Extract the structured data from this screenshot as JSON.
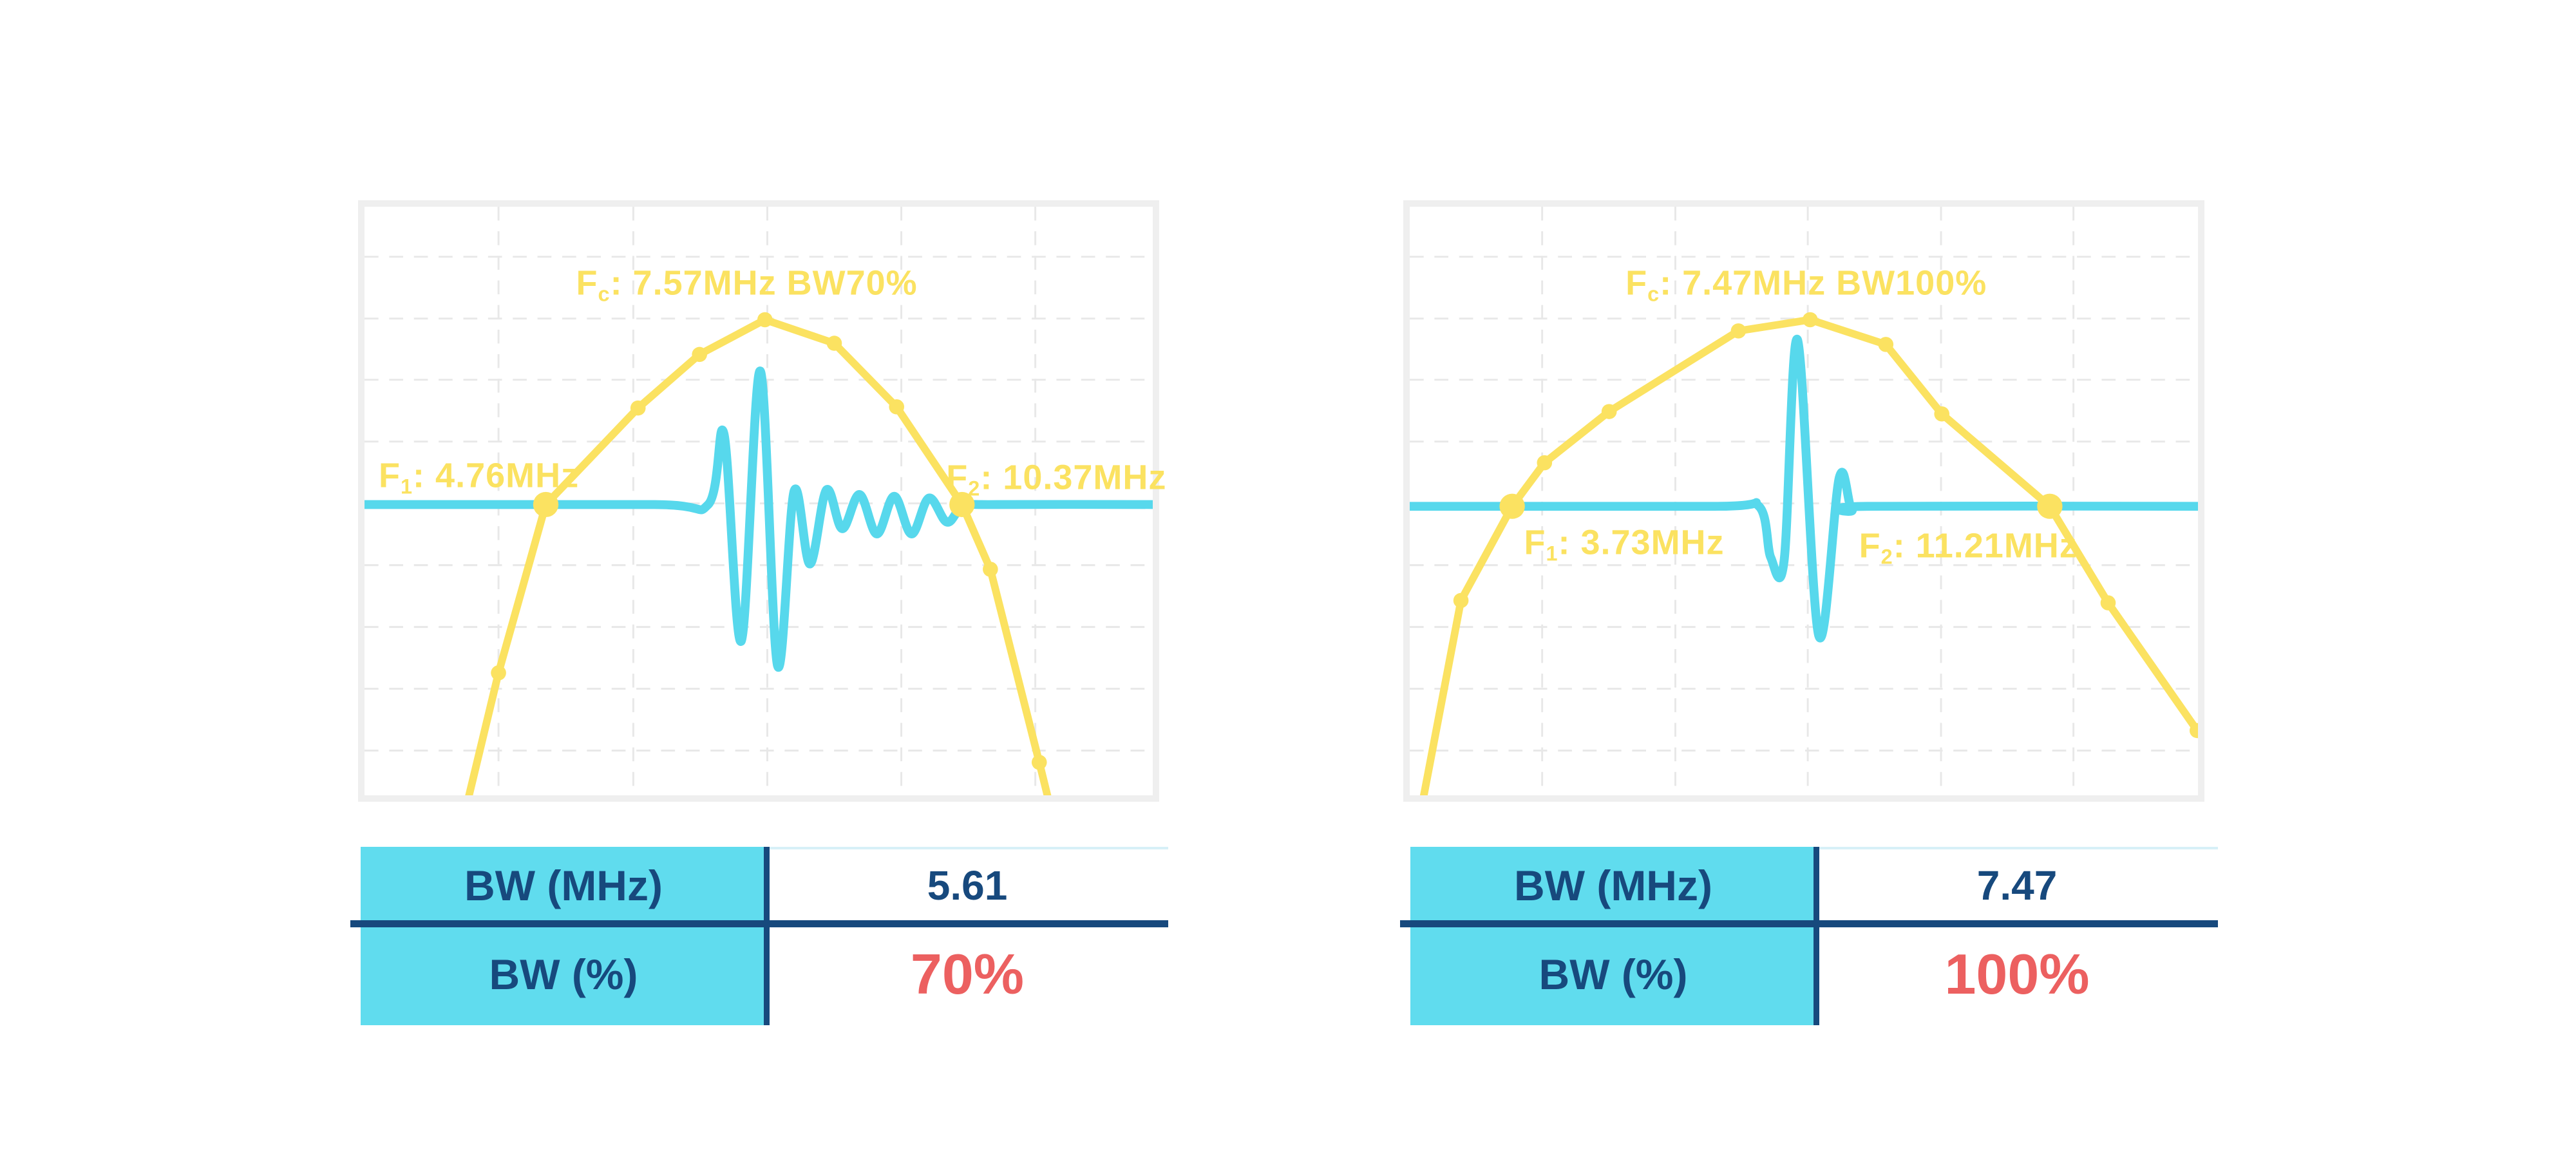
{
  "colors": {
    "background": "#FFFFFF",
    "yellow": "#FBE261",
    "cyan": "#57D8EC",
    "table_header_bg": "#60DCEE",
    "navy": "#17497D",
    "red": "#EC6060",
    "frame": "#EFEFEF",
    "grid": "#E8E8E8",
    "value_top_line": "#D7F0F7"
  },
  "chart_data": [
    {
      "id": "bw70",
      "type": "line",
      "title": "Fc: 7.57MHz BW70%",
      "labels": {
        "title": {
          "prefix": "F",
          "sub": "c",
          "rest": ": 7.57MHz BW70%"
        },
        "f1": {
          "prefix": "F",
          "sub": "1",
          "rest": ": 4.76MHz"
        },
        "f2": {
          "prefix": "F",
          "sub": "2",
          "rest": ": 10.37MHz"
        }
      },
      "key_values": {
        "Fc_MHz": 7.57,
        "F1_MHz": 4.76,
        "F2_MHz": 10.37,
        "BW_MHz": 5.61,
        "BW_percent": 70
      },
      "axes": {
        "x_unit": "MHz",
        "ticks_visible": false,
        "grid_style": "dashed"
      },
      "grid": {
        "vx": [
          0.17,
          0.341,
          0.511,
          0.681,
          0.851
        ],
        "hy": [
          0.085,
          0.19,
          0.294,
          0.399,
          0.504,
          0.609,
          0.714,
          0.819,
          0.924
        ]
      },
      "series": [
        {
          "name": "spectrum",
          "style": "line_with_markers",
          "color_key": "yellow",
          "points": [
            [
              0.124,
              1.048
            ],
            [
              0.17,
              0.792
            ],
            [
              0.23,
              0.506
            ],
            [
              0.347,
              0.342
            ],
            [
              0.425,
              0.251
            ],
            [
              0.508,
              0.192
            ],
            [
              0.596,
              0.232
            ],
            [
              0.675,
              0.34
            ],
            [
              0.758,
              0.506
            ],
            [
              0.794,
              0.616
            ],
            [
              0.856,
              0.944
            ],
            [
              0.883,
              1.091
            ]
          ],
          "markers": [
            [
              0.17,
              0.792
            ],
            [
              0.347,
              0.342
            ],
            [
              0.425,
              0.251
            ],
            [
              0.508,
              0.192
            ],
            [
              0.596,
              0.232
            ],
            [
              0.675,
              0.34
            ],
            [
              0.794,
              0.616
            ],
            [
              0.856,
              0.944
            ]
          ],
          "markers_big": [
            [
              0.23,
              0.506
            ],
            [
              0.758,
              0.506
            ]
          ]
        },
        {
          "name": "pulse_waveform",
          "style": "smooth_line",
          "color_key": "cyan",
          "baseline": 0.506,
          "points": [
            [
              0.0,
              0.506
            ],
            [
              0.365,
              0.506
            ],
            [
              0.436,
              0.506
            ],
            [
              0.456,
              0.386
            ],
            [
              0.478,
              0.738
            ],
            [
              0.502,
              0.279
            ],
            [
              0.524,
              0.78
            ],
            [
              0.545,
              0.483
            ],
            [
              0.565,
              0.607
            ],
            [
              0.586,
              0.481
            ],
            [
              0.606,
              0.547
            ],
            [
              0.628,
              0.489
            ],
            [
              0.65,
              0.556
            ],
            [
              0.672,
              0.492
            ],
            [
              0.694,
              0.556
            ],
            [
              0.716,
              0.495
            ],
            [
              0.739,
              0.536
            ],
            [
              0.76,
              0.509
            ],
            [
              0.802,
              0.506
            ],
            [
              1.0,
              0.506
            ]
          ]
        }
      ],
      "table": {
        "rows": [
          {
            "label": "BW (MHz)",
            "value": "5.61",
            "emphasis": "normal"
          },
          {
            "label": "BW (%)",
            "value": "70%",
            "emphasis": "highlight"
          }
        ]
      }
    },
    {
      "id": "bw100",
      "type": "line",
      "title": "Fc: 7.47MHz BW100%",
      "labels": {
        "title": {
          "prefix": "F",
          "sub": "c",
          "rest": ": 7.47MHz BW100%"
        },
        "f1": {
          "prefix": "F",
          "sub": "1",
          "rest": ": 3.73MHz"
        },
        "f2": {
          "prefix": "F",
          "sub": "2",
          "rest": ": 11.21MHz"
        }
      },
      "key_values": {
        "Fc_MHz": 7.47,
        "F1_MHz": 3.73,
        "F2_MHz": 11.21,
        "BW_MHz": 7.47,
        "BW_percent": 100
      },
      "axes": {
        "x_unit": "MHz",
        "ticks_visible": false,
        "grid_style": "dashed"
      },
      "grid": {
        "vx": [
          0.168,
          0.337,
          0.505,
          0.674,
          0.842
        ],
        "hy": [
          0.085,
          0.19,
          0.294,
          0.399,
          0.504,
          0.609,
          0.714,
          0.819,
          0.924
        ]
      },
      "series": [
        {
          "name": "spectrum",
          "style": "line_with_markers",
          "color_key": "yellow",
          "points": [
            [
              0.005,
              1.091
            ],
            [
              0.065,
              0.669
            ],
            [
              0.13,
              0.509
            ],
            [
              0.171,
              0.435
            ],
            [
              0.253,
              0.348
            ],
            [
              0.417,
              0.211
            ],
            [
              0.508,
              0.192
            ],
            [
              0.604,
              0.234
            ],
            [
              0.675,
              0.352
            ],
            [
              0.812,
              0.509
            ],
            [
              0.886,
              0.673
            ],
            [
              0.999,
              0.89
            ]
          ],
          "markers": [
            [
              0.065,
              0.669
            ],
            [
              0.171,
              0.435
            ],
            [
              0.253,
              0.348
            ],
            [
              0.417,
              0.211
            ],
            [
              0.508,
              0.192
            ],
            [
              0.604,
              0.234
            ],
            [
              0.675,
              0.352
            ],
            [
              0.886,
              0.673
            ],
            [
              0.999,
              0.89
            ]
          ],
          "markers_big": [
            [
              0.13,
              0.509
            ],
            [
              0.812,
              0.509
            ]
          ]
        },
        {
          "name": "pulse_waveform",
          "style": "smooth_line",
          "color_key": "cyan",
          "baseline": 0.509,
          "points": [
            [
              0.0,
              0.509
            ],
            [
              0.387,
              0.509
            ],
            [
              0.443,
              0.509
            ],
            [
              0.458,
              0.596
            ],
            [
              0.475,
              0.601
            ],
            [
              0.492,
              0.226
            ],
            [
              0.519,
              0.729
            ],
            [
              0.545,
              0.46
            ],
            [
              0.561,
              0.515
            ],
            [
              0.58,
              0.509
            ],
            [
              1.0,
              0.509
            ]
          ]
        }
      ],
      "table": {
        "rows": [
          {
            "label": "BW (MHz)",
            "value": "7.47",
            "emphasis": "normal"
          },
          {
            "label": "BW (%)",
            "value": "100%",
            "emphasis": "highlight"
          }
        ]
      }
    }
  ]
}
